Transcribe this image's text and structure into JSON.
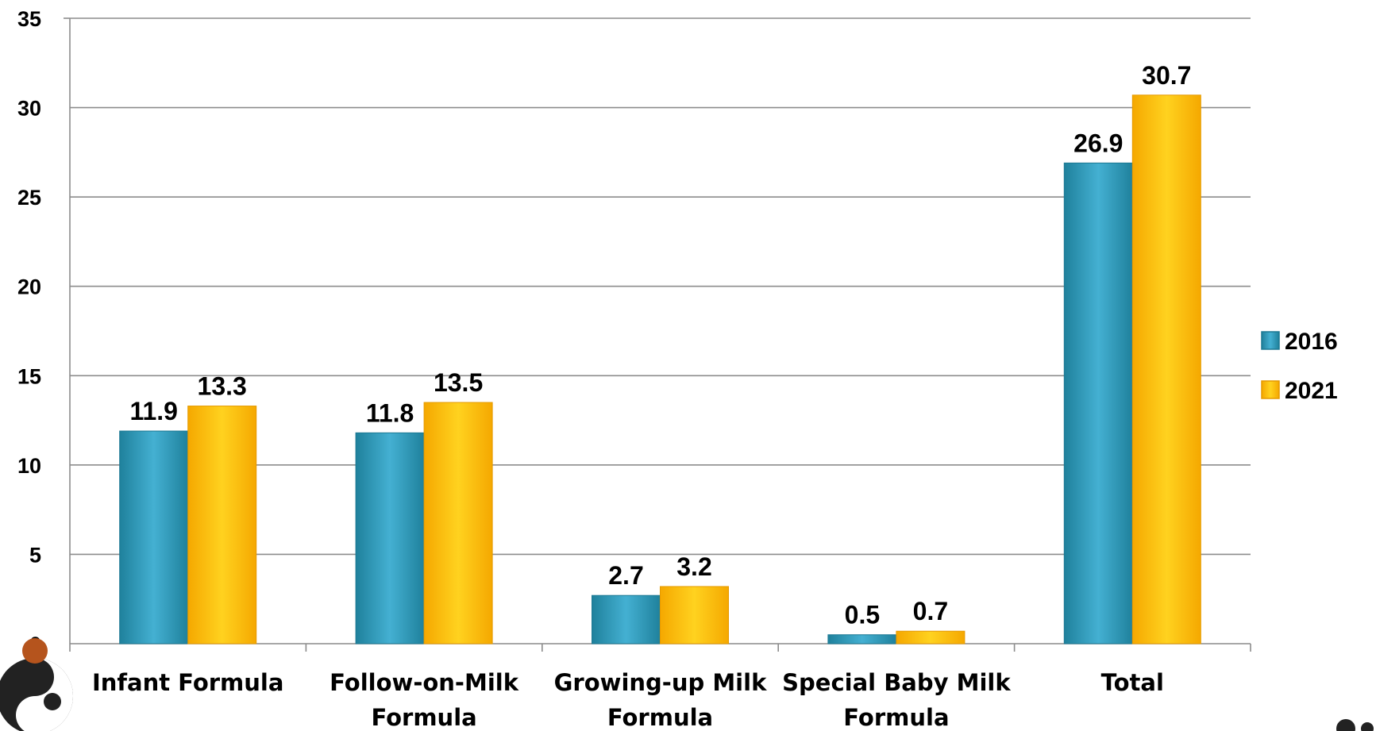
{
  "chart_data": {
    "type": "bar",
    "categories": [
      [
        "Infant Formula"
      ],
      [
        "Follow-on-Milk",
        "Formula"
      ],
      [
        "Growing-up Milk",
        "Formula"
      ],
      [
        "Special Baby Milk",
        "Formula"
      ],
      [
        "Total"
      ]
    ],
    "series": [
      {
        "name": "2016",
        "values": [
          11.9,
          11.8,
          2.7,
          0.5,
          26.9
        ],
        "color": "#2a9dbd"
      },
      {
        "name": "2021",
        "values": [
          13.3,
          13.5,
          3.2,
          0.7,
          30.7
        ],
        "color": "#fbbf14"
      }
    ],
    "data_labels": [
      [
        "11.9",
        "11.8",
        "2.7",
        "0.5",
        "26.9"
      ],
      [
        "13.3",
        "13.5",
        "3.2",
        "0.7",
        "30.7"
      ]
    ],
    "ylim": [
      0,
      35
    ],
    "yticks": [
      0,
      5,
      10,
      15,
      20,
      25,
      30,
      35
    ],
    "grid": true,
    "legend": "right",
    "title": "",
    "xlabel": "",
    "ylabel": ""
  }
}
